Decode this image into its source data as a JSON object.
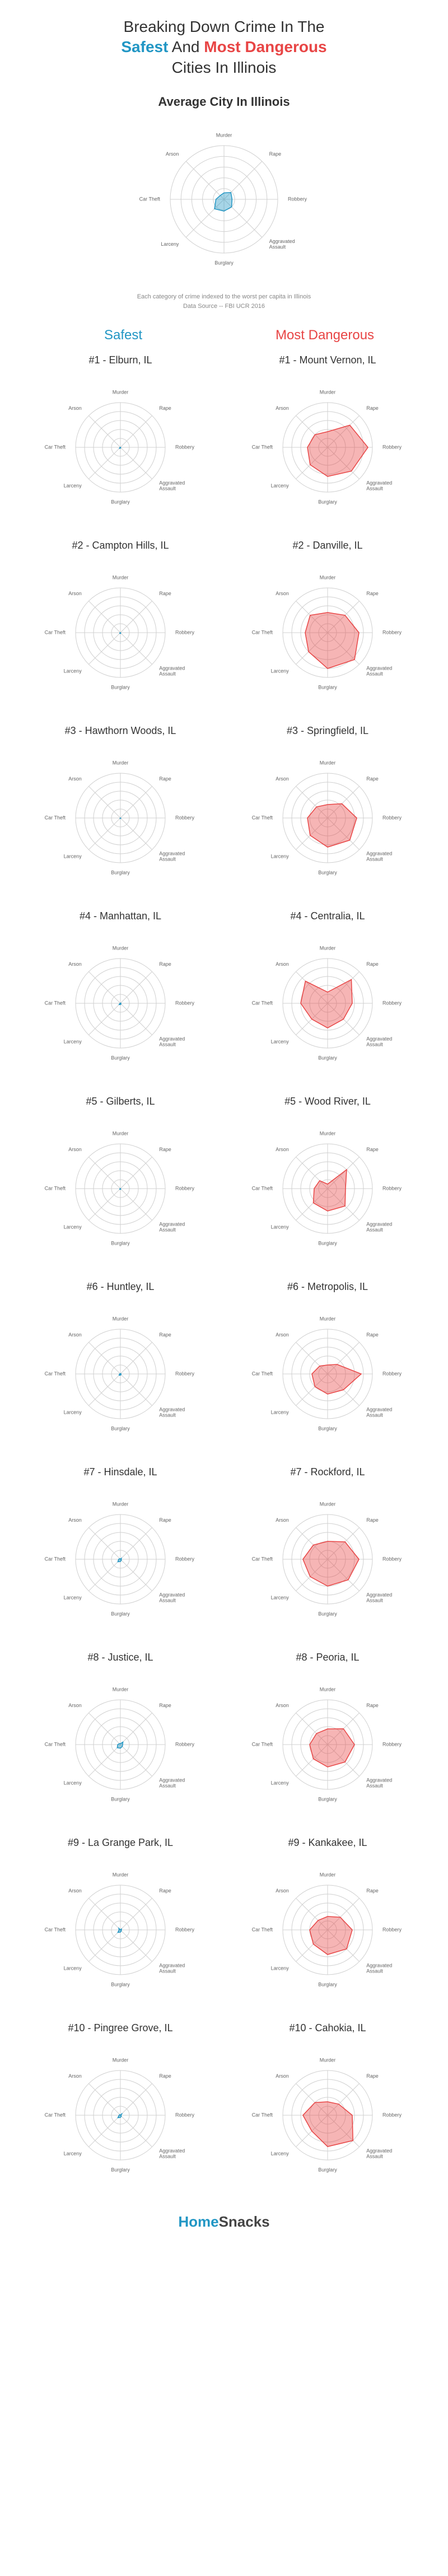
{
  "title_parts": {
    "line1_pre": "Breaking Down Crime In The",
    "safe": "Safest",
    "and": " And ",
    "danger": "Most Dangerous",
    "line2_post": "Cities In Illinois"
  },
  "average_title": "Average City In Illinois",
  "caption_line1": "Each category of crime indexed to the worst per capita in Illinois",
  "caption_line2": "Data Source -- FBI UCR 2016",
  "safe_header": "Safest",
  "danger_header": "Most Dangerous",
  "radar": {
    "axes": [
      "Murder",
      "Rape",
      "Robbery",
      "Aggravated\nAssault",
      "Burglary",
      "Larceny",
      "Car Theft",
      "Arson"
    ],
    "rings": [
      20,
      40,
      60,
      80,
      100
    ],
    "max": 100,
    "radius": 80,
    "label_fontsize": 9,
    "grid_color": "#d0d0d0",
    "safe_fill": "rgba(33,150,196,0.4)",
    "safe_stroke": "#2196c4",
    "danger_fill": "rgba(232,69,69,0.4)",
    "danger_stroke": "#e84545"
  },
  "average": {
    "values": [
      12,
      18,
      15,
      20,
      22,
      25,
      15,
      10
    ],
    "color": "safe"
  },
  "rows": [
    {
      "safe": {
        "title": "#1 - Elburn, IL",
        "values": [
          0,
          1,
          0,
          1,
          2,
          3,
          1,
          0
        ]
      },
      "danger": {
        "title": "#1 - Mount Vernon, IL",
        "values": [
          35,
          70,
          90,
          75,
          65,
          55,
          45,
          40
        ]
      }
    },
    {
      "safe": {
        "title": "#2 - Campton Hills, IL",
        "values": [
          0,
          0,
          0,
          1,
          2,
          2,
          1,
          0
        ]
      },
      "danger": {
        "title": "#2 - Danville, IL",
        "values": [
          45,
          55,
          70,
          85,
          80,
          60,
          50,
          55
        ]
      }
    },
    {
      "safe": {
        "title": "#3 - Hawthorn Woods, IL",
        "values": [
          0,
          1,
          0,
          1,
          1,
          2,
          0,
          0
        ]
      },
      "danger": {
        "title": "#3 - Springfield, IL",
        "values": [
          30,
          45,
          65,
          70,
          65,
          55,
          45,
          35
        ]
      }
    },
    {
      "safe": {
        "title": "#4 - Manhattan, IL",
        "values": [
          0,
          2,
          0,
          2,
          3,
          4,
          1,
          0
        ]
      },
      "danger": {
        "title": "#4 - Centralia, IL",
        "values": [
          25,
          75,
          55,
          50,
          55,
          50,
          60,
          70
        ]
      }
    },
    {
      "safe": {
        "title": "#5 - Gilberts, IL",
        "values": [
          0,
          1,
          0,
          1,
          2,
          2,
          1,
          0
        ]
      },
      "danger": {
        "title": "#5 - Wood River, IL",
        "values": [
          10,
          60,
          40,
          55,
          50,
          45,
          30,
          25
        ]
      }
    },
    {
      "safe": {
        "title": "#6 - Huntley, IL",
        "values": [
          0,
          2,
          1,
          2,
          3,
          4,
          2,
          1
        ]
      },
      "danger": {
        "title": "#6 - Metropolis, IL",
        "values": [
          20,
          30,
          75,
          50,
          45,
          40,
          35,
          25
        ]
      }
    },
    {
      "safe": {
        "title": "#7 - Hinsdale, IL",
        "values": [
          0,
          3,
          2,
          3,
          5,
          8,
          4,
          2
        ]
      },
      "danger": {
        "title": "#7 - Rockford, IL",
        "values": [
          40,
          55,
          70,
          65,
          60,
          55,
          55,
          45
        ]
      }
    },
    {
      "safe": {
        "title": "#8 - Justice, IL",
        "values": [
          2,
          8,
          5,
          6,
          8,
          10,
          6,
          3
        ]
      },
      "danger": {
        "title": "#8 - Peoria, IL",
        "values": [
          35,
          50,
          60,
          55,
          50,
          45,
          40,
          35
        ]
      }
    },
    {
      "safe": {
        "title": "#9 - La Grange Park, IL",
        "values": [
          0,
          4,
          2,
          3,
          5,
          8,
          3,
          5
        ]
      },
      "danger": {
        "title": "#9 - Kankakee, IL",
        "values": [
          30,
          40,
          55,
          60,
          55,
          45,
          40,
          30
        ]
      }
    },
    {
      "safe": {
        "title": "#10 - Pingree Grove, IL",
        "values": [
          0,
          6,
          1,
          3,
          5,
          8,
          3,
          2
        ]
      },
      "danger": {
        "title": "#10 - Cahokia, IL",
        "values": [
          30,
          35,
          55,
          80,
          70,
          50,
          55,
          40
        ]
      }
    }
  ],
  "footer": {
    "home": "Home",
    "snacks": "Snacks"
  }
}
